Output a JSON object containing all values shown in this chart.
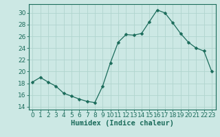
{
  "x": [
    0,
    1,
    2,
    3,
    4,
    5,
    6,
    7,
    8,
    9,
    10,
    11,
    12,
    13,
    14,
    15,
    16,
    17,
    18,
    19,
    20,
    21,
    22,
    23
  ],
  "y": [
    18.2,
    19.0,
    18.2,
    17.5,
    16.3,
    15.8,
    15.3,
    14.9,
    14.7,
    17.5,
    21.5,
    25.0,
    26.3,
    26.2,
    26.5,
    28.5,
    30.5,
    30.0,
    28.3,
    26.5,
    25.0,
    24.0,
    23.5,
    20.0
  ],
  "line_color": "#1a6b5a",
  "marker": "D",
  "marker_size": 2.5,
  "bg_color": "#cce8e4",
  "grid_color_major": "#b0d4ce",
  "grid_color_minor": "#b0d4ce",
  "xlabel": "Humidex (Indice chaleur)",
  "ylim": [
    13.5,
    31.5
  ],
  "xlim": [
    -0.5,
    23.5
  ],
  "yticks": [
    14,
    16,
    18,
    20,
    22,
    24,
    26,
    28,
    30
  ],
  "xticks": [
    0,
    1,
    2,
    3,
    4,
    5,
    6,
    7,
    8,
    9,
    10,
    11,
    12,
    13,
    14,
    15,
    16,
    17,
    18,
    19,
    20,
    21,
    22,
    23
  ],
  "tick_color": "#1a6b5a",
  "axis_color": "#1a6b5a",
  "label_fontsize": 7.5,
  "tick_fontsize": 6.5
}
